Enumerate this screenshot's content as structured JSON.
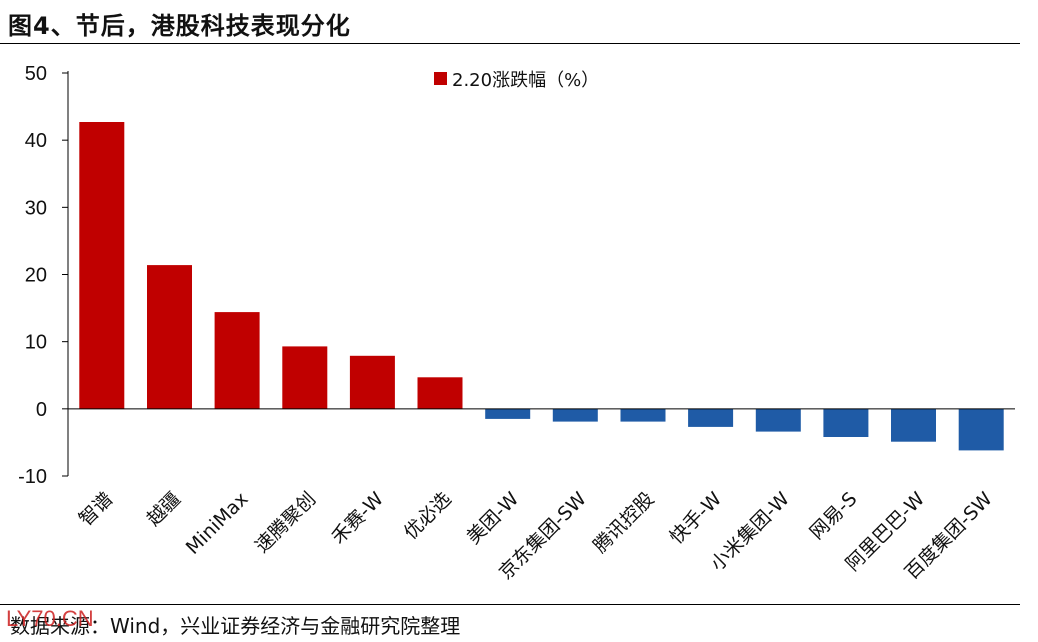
{
  "figure": {
    "title": "图4、节后，港股科技表现分化",
    "source": "数据来源：Wind，兴业证券经济与金融研究院整理",
    "watermark": "LY70.CN"
  },
  "colors": {
    "positive": "#c00000",
    "negative": "#1f5ba6",
    "axis": "#000000"
  },
  "chart_data": {
    "type": "bar",
    "categories": [
      "智谱",
      "越疆",
      "MiniMax",
      "速腾聚创",
      "禾赛-W",
      "优必选",
      "美团-W",
      "京东集团-SW",
      "腾讯控股",
      "快手-W",
      "小米集团-W",
      "网易-S",
      "阿里巴巴-W",
      "百度集团-SW"
    ],
    "series": [
      {
        "name": "2.20涨跌幅（%）",
        "values": [
          42.7,
          21.4,
          14.4,
          9.3,
          7.9,
          4.7,
          -1.5,
          -1.9,
          -1.9,
          -2.7,
          -3.4,
          -4.2,
          -4.9,
          -6.2
        ]
      }
    ],
    "yticks": [
      "50",
      "40",
      "30",
      "20",
      "10",
      "0",
      "-10"
    ],
    "ylim": [
      -10,
      50
    ],
    "grid": false,
    "legend_position": "top-center"
  }
}
